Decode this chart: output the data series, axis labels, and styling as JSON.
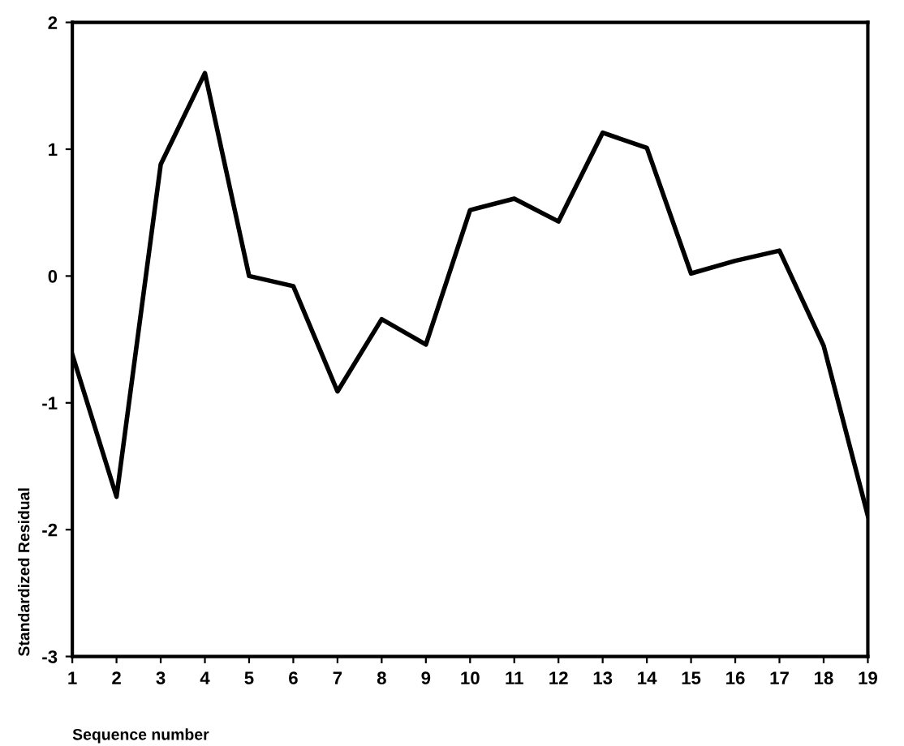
{
  "chart_data": {
    "type": "line",
    "xlabel": "Sequence number",
    "ylabel": "Standardized Residual",
    "categories": [
      "1",
      "2",
      "3",
      "4",
      "5",
      "6",
      "7",
      "8",
      "9",
      "10",
      "11",
      "12",
      "13",
      "14",
      "15",
      "16",
      "17",
      "18",
      "19"
    ],
    "series": [
      {
        "color": "#000000",
        "values": [
          -0.62,
          -1.74,
          0.88,
          1.6,
          0.0,
          -0.08,
          -0.91,
          -0.34,
          -0.54,
          0.52,
          0.61,
          0.43,
          1.13,
          1.01,
          0.02,
          0.12,
          0.2,
          -0.55,
          -1.89
        ]
      }
    ],
    "ylim": [
      -3,
      2
    ],
    "yticks": [
      -3,
      -2,
      -1,
      0,
      1,
      2
    ],
    "grid": false,
    "marker": "none",
    "line_style": "solid"
  }
}
